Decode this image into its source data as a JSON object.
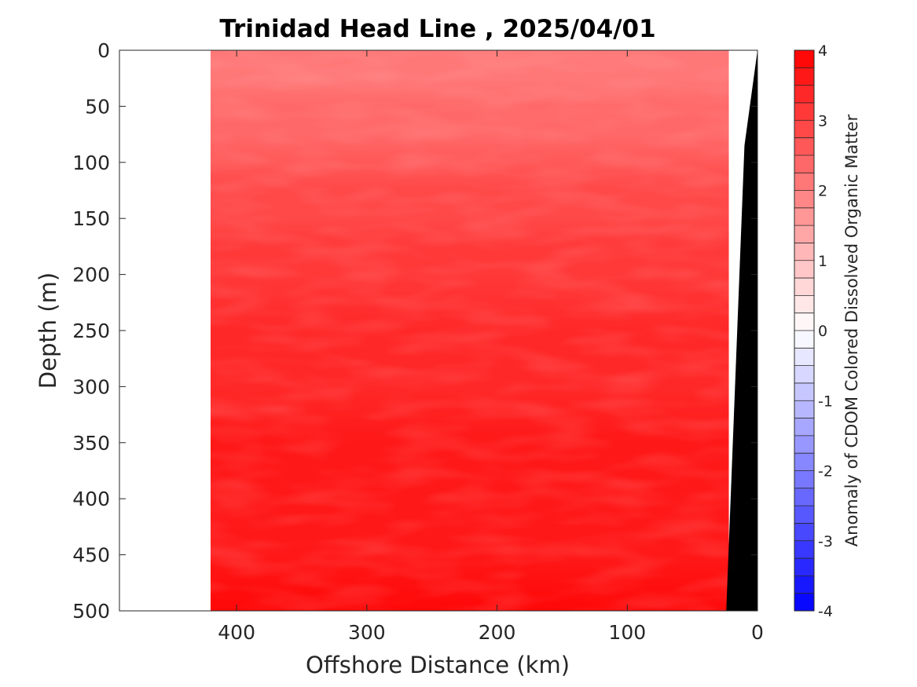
{
  "chart_data": {
    "type": "heatmap",
    "subtype": "filled-contour section",
    "title": "Trinidad Head Line , 2025/04/01",
    "xlabel": "Offshore Distance (km)",
    "ylabel": "Depth (m)",
    "x_reversed": true,
    "y_reversed": true,
    "xlim": [
      0,
      490
    ],
    "ylim": [
      0,
      500
    ],
    "x_ticks": [
      400,
      300,
      200,
      100,
      0
    ],
    "y_ticks": [
      0,
      50,
      100,
      150,
      200,
      250,
      300,
      350,
      400,
      450,
      500
    ],
    "data_extent_km": [
      22,
      420
    ],
    "grid": false,
    "colorbar": {
      "label": "Anomaly of CDOM Colored Dissolved Organic Matter",
      "range": [
        -4,
        4
      ],
      "step": 0.25,
      "ticks": [
        4,
        3,
        2,
        1,
        0,
        -1,
        -2,
        -3,
        -4
      ],
      "colormap": "blue-white-red diverging",
      "low_color": "#0000ff",
      "mid_color": "#ffffff",
      "high_color": "#ff0000"
    },
    "depth_profile": [
      {
        "depth": 0,
        "anomaly": 2.0
      },
      {
        "depth": 25,
        "anomaly": 2.1
      },
      {
        "depth": 50,
        "anomaly": 2.25
      },
      {
        "depth": 75,
        "anomaly": 2.45
      },
      {
        "depth": 100,
        "anomaly": 2.6
      },
      {
        "depth": 125,
        "anomaly": 2.75
      },
      {
        "depth": 150,
        "anomaly": 2.9
      },
      {
        "depth": 175,
        "anomaly": 3.0
      },
      {
        "depth": 200,
        "anomaly": 3.1
      },
      {
        "depth": 250,
        "anomaly": 3.25
      },
      {
        "depth": 300,
        "anomaly": 3.45
      },
      {
        "depth": 350,
        "anomaly": 3.5
      },
      {
        "depth": 400,
        "anomaly": 3.6
      },
      {
        "depth": 450,
        "anomaly": 3.7
      },
      {
        "depth": 500,
        "anomaly": 3.75
      }
    ],
    "bathymetry": [
      {
        "distance": 0,
        "depth": 0
      },
      {
        "distance": 10,
        "depth": 85
      },
      {
        "distance": 24,
        "depth": 500
      }
    ],
    "land_color": "#000000"
  }
}
